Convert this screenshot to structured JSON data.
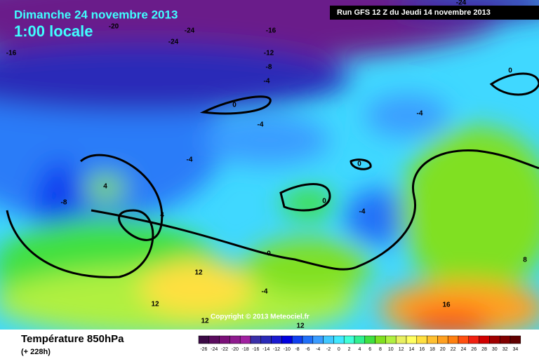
{
  "header": {
    "date": "Dimanche 24 novembre 2013",
    "time": "1:00 locale",
    "run": "Run GFS 12 Z du Jeudi 14 novembre 2013"
  },
  "map": {
    "contour_labels": [
      "-20",
      "-24",
      "-24",
      "-16",
      "-16",
      "-12",
      "-8",
      "-4",
      "0",
      "-4",
      "-4",
      "0",
      "-24",
      "-4",
      "4",
      "-8",
      "4",
      "0",
      "0",
      "-4",
      "0",
      "12",
      "-4",
      "12",
      "16",
      "8",
      "12",
      "12"
    ],
    "copyright": "Copyright © 2013 Meteociel.fr"
  },
  "footer": {
    "title": "Température 850hPa",
    "subtitle": "(+ 228h)"
  },
  "colorbar": {
    "labels": [
      -26,
      -24,
      -22,
      -20,
      -18,
      -16,
      -14,
      -12,
      -10,
      -8,
      -6,
      -4,
      -2,
      0,
      2,
      4,
      6,
      8,
      10,
      12,
      14,
      16,
      18,
      20,
      22,
      24,
      26,
      28,
      30,
      32,
      34
    ],
    "colors": [
      "#3b0a45",
      "#5a0c5e",
      "#7a1078",
      "#8e1a8e",
      "#a020a0",
      "#3a2fa8",
      "#2a2ab8",
      "#1a1ad0",
      "#0000e0",
      "#1040f0",
      "#2070f8",
      "#3a9cff",
      "#40c8ff",
      "#40e8ff",
      "#40ffd8",
      "#30f090",
      "#40e040",
      "#80e020",
      "#b0f040",
      "#e8f060",
      "#ffff60",
      "#ffe040",
      "#ffc030",
      "#ffa020",
      "#ff8010",
      "#ff5010",
      "#f02010",
      "#d00000",
      "#a00000",
      "#800000",
      "#600000"
    ]
  }
}
